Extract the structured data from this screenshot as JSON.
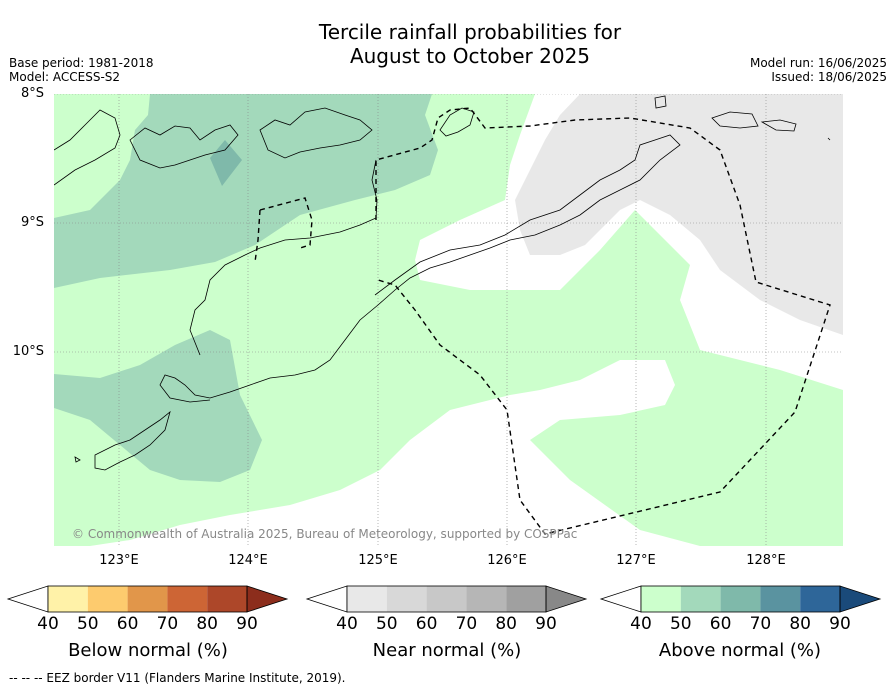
{
  "title_line1": "Tercile rainfall probabilities for",
  "title_line2": "August to October 2025",
  "base_period": "Base period: 1981-2018",
  "model": "Model: ACCESS-S2",
  "model_run": "Model run: 16/06/2025",
  "issued": "Issued: 18/06/2025",
  "lat_labels": [
    "8°S",
    "9°S",
    "10°S"
  ],
  "lon_labels": [
    "123°E",
    "124°E",
    "125°E",
    "126°E",
    "127°E",
    "128°E"
  ],
  "copyright": "© Commonwealth of Australia 2025, Bureau of Meteorology, supported by COSPPac",
  "colorbars": [
    {
      "label": "Below normal (%)",
      "ticks": [
        "40",
        "50",
        "60",
        "70",
        "80",
        "90"
      ],
      "colors": [
        "#ffffff",
        "#fff2a8",
        "#fdcb6e",
        "#e1964a",
        "#cd6535",
        "#ad4729",
        "#8c2d1c"
      ]
    },
    {
      "label": "Near normal (%)",
      "ticks": [
        "40",
        "50",
        "60",
        "70",
        "80",
        "90"
      ],
      "colors": [
        "#ffffff",
        "#e8e8e8",
        "#d8d8d8",
        "#c8c8c8",
        "#b6b6b6",
        "#a0a0a0",
        "#888888"
      ]
    },
    {
      "label": "Above normal (%)",
      "ticks": [
        "40",
        "50",
        "60",
        "70",
        "80",
        "90"
      ],
      "colors": [
        "#ffffff",
        "#ccffcc",
        "#a3d9bb",
        "#7fb9aa",
        "#5a93a0",
        "#2e6699",
        "#1a4a7a"
      ]
    }
  ],
  "footer": "--  --  -- EEZ border V11 (Flanders Marine Institute, 2019)."
}
